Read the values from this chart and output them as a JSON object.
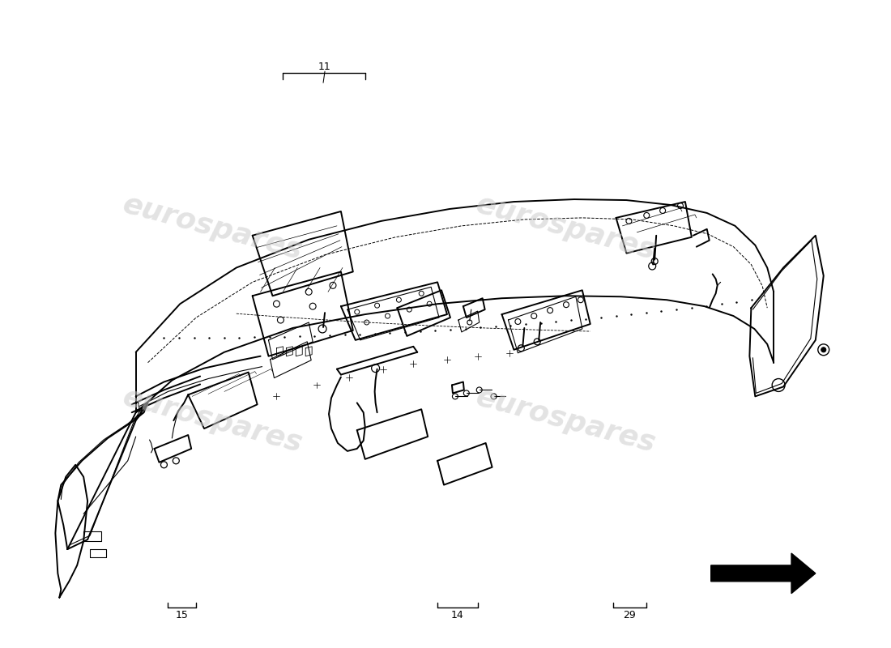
{
  "bg_color": "#ffffff",
  "line_color": "#000000",
  "watermark_color": "#cccccc",
  "watermark_text": "eurospares",
  "figsize": [
    11.0,
    8.0
  ],
  "dpi": 100
}
